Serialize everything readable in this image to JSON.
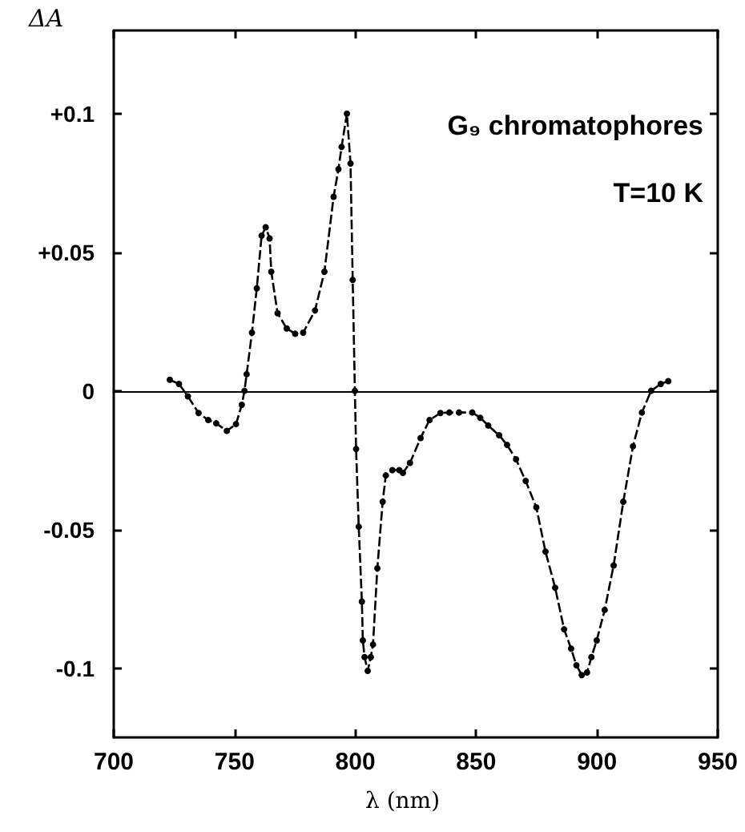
{
  "chart_data": {
    "type": "line",
    "xlabel": "λ (nm)",
    "ylabel": "ΔA",
    "annotations": [
      "G₉ chromatophores",
      "T=10 K"
    ],
    "xlim": [
      700,
      950
    ],
    "xticks": [
      700,
      750,
      800,
      850,
      900,
      950
    ],
    "ylim": [
      -0.125,
      0.13
    ],
    "yticks": [
      {
        "value": 0.1,
        "label": "+0.1"
      },
      {
        "value": 0.05,
        "label": "+0.05"
      },
      0,
      {
        "value": -0.05,
        "label": "-0.05"
      },
      {
        "value": -0.1,
        "label": "-0.1"
      }
    ],
    "grid": false,
    "marker": "circle",
    "line_style": "dashed",
    "ref_lines": [
      {
        "axis": "y",
        "value": 0,
        "color": "#000000",
        "line_style": "solid"
      }
    ],
    "series": [
      {
        "color": "#000000",
        "x": [
          723.2,
          727,
          730.7,
          735.1,
          739.1,
          742.4,
          746.8,
          750.6,
          753,
          754.1,
          755,
          757.2,
          759.2,
          761.2,
          762.9,
          764.5,
          765.2,
          767.8,
          771.6,
          775.1,
          778.4,
          783.3,
          787.2,
          791,
          793,
          794.3,
          796.5,
          798,
          798.9,
          799.8,
          800.3,
          801.4,
          802.7,
          803.1,
          803.8,
          805.1,
          806.4,
          807.3,
          809.1,
          811.3,
          812.6,
          815.3,
          818.2,
          819.7,
          822.6,
          827,
          830.7,
          835.2,
          838.9,
          842.9,
          848.4,
          851.7,
          855,
          859.5,
          862.8,
          866.5,
          870.5,
          874.9,
          878.7,
          882.7,
          886.4,
          889.3,
          891.5,
          893.7,
          895.9,
          897.7,
          899.9,
          903.2,
          906.9,
          910.9,
          914.9,
          918.6,
          922.4,
          926.4,
          929.5
        ],
        "values": [
          0.004,
          0.0025,
          -0.002,
          -0.008,
          -0.0105,
          -0.0117,
          -0.0144,
          -0.012,
          -0.005,
          0,
          0.006,
          0.021,
          0.037,
          0.056,
          0.059,
          0.055,
          0.043,
          0.028,
          0.0225,
          0.0206,
          0.021,
          0.029,
          0.043,
          0.07,
          0.08,
          0.088,
          0.1,
          0.082,
          0.04,
          0,
          -0.021,
          -0.049,
          -0.076,
          -0.09,
          -0.096,
          -0.101,
          -0.096,
          -0.0915,
          -0.064,
          -0.04,
          -0.0305,
          -0.0286,
          -0.0286,
          -0.0296,
          -0.026,
          -0.017,
          -0.0105,
          -0.008,
          -0.0078,
          -0.0078,
          -0.0078,
          -0.0097,
          -0.0125,
          -0.016,
          -0.0195,
          -0.0247,
          -0.0325,
          -0.042,
          -0.058,
          -0.071,
          -0.086,
          -0.093,
          -0.099,
          -0.1025,
          -0.1016,
          -0.096,
          -0.09,
          -0.079,
          -0.063,
          -0.04,
          -0.02,
          -0.0078,
          0,
          0.0025,
          0.0035
        ]
      }
    ]
  }
}
